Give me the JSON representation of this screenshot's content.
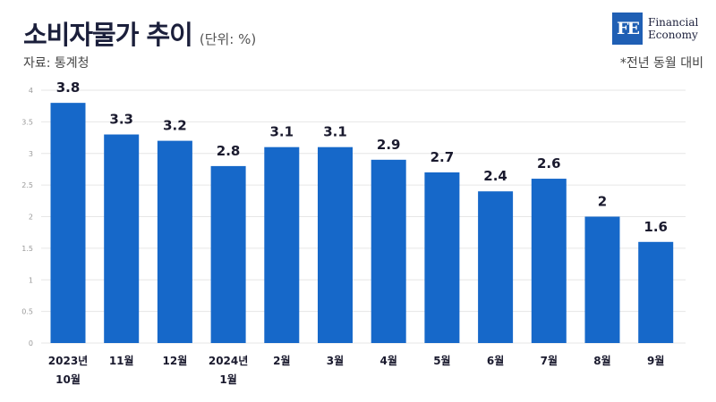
{
  "header": {
    "title": "소비자물가 추이",
    "unit": "(단위: %)",
    "source": "자료: 통계청",
    "note": "*전년 동월 대비"
  },
  "logo": {
    "mark": "FE",
    "line1": "Financial",
    "line2": "Economy",
    "color": "#1f5fb4"
  },
  "chart_data": {
    "type": "bar",
    "categories": [
      [
        "2023년",
        "10월"
      ],
      [
        "11월"
      ],
      [
        "12월"
      ],
      [
        "2024년",
        "1월"
      ],
      [
        "2월"
      ],
      [
        "3월"
      ],
      [
        "4월"
      ],
      [
        "5월"
      ],
      [
        "6월"
      ],
      [
        "7월"
      ],
      [
        "8월"
      ],
      [
        "9월"
      ]
    ],
    "values": [
      3.8,
      3.3,
      3.2,
      2.8,
      3.1,
      3.1,
      2.9,
      2.7,
      2.4,
      2.6,
      2,
      1.6
    ],
    "value_labels": [
      "3.8",
      "3.3",
      "3.2",
      "2.8",
      "3.1",
      "3.1",
      "2.9",
      "2.7",
      "2.4",
      "2.6",
      "2",
      "1.6"
    ],
    "yticks": [
      0,
      0.5,
      1,
      1.5,
      2,
      2.5,
      3,
      3.5,
      4
    ],
    "ytick_labels": [
      "0",
      "0.5",
      "1",
      "1.5",
      "2",
      "2.5",
      "3",
      "3.5",
      "4"
    ],
    "ylim": [
      0,
      4
    ],
    "grid": true,
    "bar_color": "#1668c9"
  }
}
